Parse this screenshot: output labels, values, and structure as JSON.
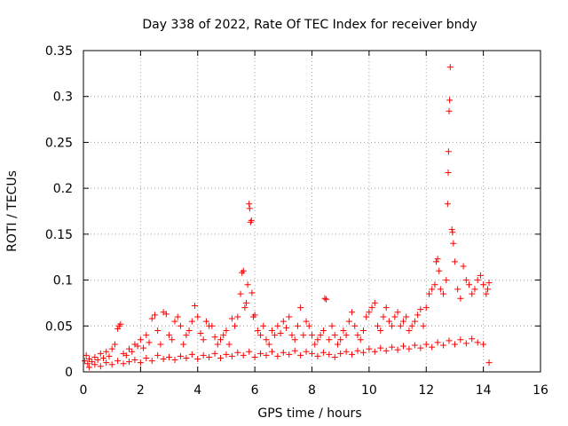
{
  "chart_data": {
    "type": "scatter",
    "title": "Day 338 of 2022, Rate Of TEC Index for receiver bndy",
    "xlabel": "GPS time / hours",
    "ylabel": "ROTI / TECUs",
    "xlim": [
      0,
      16
    ],
    "ylim": [
      0,
      0.35
    ],
    "x_ticks": [
      0,
      2,
      4,
      6,
      8,
      10,
      12,
      14,
      16
    ],
    "x_tick_labels": [
      "0",
      "2",
      "4",
      "6",
      "8",
      "10",
      "12",
      "14",
      "16"
    ],
    "y_ticks": [
      0,
      0.05,
      0.1,
      0.15,
      0.2,
      0.25,
      0.3,
      0.35
    ],
    "y_tick_labels": [
      "0",
      "0.05",
      "0.1",
      "0.15",
      "0.2",
      "0.25",
      "0.3",
      "0.35"
    ],
    "grid": true,
    "marker": "+",
    "marker_color": "#ff0000",
    "series": [
      {
        "name": "ROTI",
        "points": [
          [
            0.05,
            0.012
          ],
          [
            0.1,
            0.018
          ],
          [
            0.15,
            0.009
          ],
          [
            0.2,
            0.014
          ],
          [
            0.3,
            0.011
          ],
          [
            0.4,
            0.016
          ],
          [
            0.5,
            0.013
          ],
          [
            0.6,
            0.02
          ],
          [
            0.7,
            0.015
          ],
          [
            0.8,
            0.022
          ],
          [
            0.9,
            0.017
          ],
          [
            1.0,
            0.025
          ],
          [
            1.1,
            0.03
          ],
          [
            1.2,
            0.047
          ],
          [
            1.25,
            0.05
          ],
          [
            1.3,
            0.052
          ],
          [
            1.4,
            0.02
          ],
          [
            1.5,
            0.018
          ],
          [
            1.6,
            0.025
          ],
          [
            1.7,
            0.022
          ],
          [
            1.8,
            0.03
          ],
          [
            1.9,
            0.028
          ],
          [
            2.0,
            0.035
          ],
          [
            2.1,
            0.026
          ],
          [
            2.2,
            0.04
          ],
          [
            2.3,
            0.032
          ],
          [
            2.4,
            0.058
          ],
          [
            2.5,
            0.062
          ],
          [
            2.6,
            0.045
          ],
          [
            2.7,
            0.03
          ],
          [
            2.8,
            0.065
          ],
          [
            2.9,
            0.063
          ],
          [
            3.0,
            0.04
          ],
          [
            3.1,
            0.035
          ],
          [
            3.2,
            0.055
          ],
          [
            3.3,
            0.06
          ],
          [
            3.4,
            0.05
          ],
          [
            3.5,
            0.03
          ],
          [
            3.6,
            0.04
          ],
          [
            3.7,
            0.045
          ],
          [
            3.8,
            0.055
          ],
          [
            3.9,
            0.072
          ],
          [
            4.0,
            0.06
          ],
          [
            4.1,
            0.042
          ],
          [
            4.2,
            0.035
          ],
          [
            4.3,
            0.055
          ],
          [
            4.4,
            0.05
          ],
          [
            4.5,
            0.05
          ],
          [
            4.6,
            0.038
          ],
          [
            4.7,
            0.03
          ],
          [
            4.8,
            0.035
          ],
          [
            4.9,
            0.04
          ],
          [
            5.0,
            0.045
          ],
          [
            5.1,
            0.03
          ],
          [
            5.2,
            0.058
          ],
          [
            5.3,
            0.05
          ],
          [
            5.4,
            0.06
          ],
          [
            5.5,
            0.085
          ],
          [
            5.55,
            0.108
          ],
          [
            5.6,
            0.11
          ],
          [
            5.65,
            0.07
          ],
          [
            5.7,
            0.075
          ],
          [
            5.75,
            0.095
          ],
          [
            5.8,
            0.183
          ],
          [
            5.82,
            0.178
          ],
          [
            5.85,
            0.163
          ],
          [
            5.88,
            0.165
          ],
          [
            5.9,
            0.086
          ],
          [
            5.95,
            0.06
          ],
          [
            6.0,
            0.062
          ],
          [
            6.1,
            0.045
          ],
          [
            6.2,
            0.04
          ],
          [
            6.3,
            0.05
          ],
          [
            6.4,
            0.035
          ],
          [
            6.5,
            0.03
          ],
          [
            6.6,
            0.045
          ],
          [
            6.7,
            0.04
          ],
          [
            6.8,
            0.05
          ],
          [
            6.9,
            0.042
          ],
          [
            7.0,
            0.055
          ],
          [
            7.1,
            0.048
          ],
          [
            7.2,
            0.06
          ],
          [
            7.3,
            0.04
          ],
          [
            7.4,
            0.035
          ],
          [
            7.5,
            0.05
          ],
          [
            7.6,
            0.07
          ],
          [
            7.7,
            0.04
          ],
          [
            7.8,
            0.055
          ],
          [
            7.9,
            0.05
          ],
          [
            8.0,
            0.04
          ],
          [
            8.1,
            0.03
          ],
          [
            8.2,
            0.035
          ],
          [
            8.3,
            0.04
          ],
          [
            8.4,
            0.045
          ],
          [
            8.45,
            0.08
          ],
          [
            8.5,
            0.079
          ],
          [
            8.6,
            0.035
          ],
          [
            8.7,
            0.05
          ],
          [
            8.8,
            0.04
          ],
          [
            8.9,
            0.03
          ],
          [
            9.0,
            0.035
          ],
          [
            9.1,
            0.045
          ],
          [
            9.2,
            0.04
          ],
          [
            9.3,
            0.055
          ],
          [
            9.4,
            0.065
          ],
          [
            9.5,
            0.05
          ],
          [
            9.6,
            0.04
          ],
          [
            9.7,
            0.035
          ],
          [
            9.8,
            0.045
          ],
          [
            9.9,
            0.06
          ],
          [
            10.0,
            0.065
          ],
          [
            10.1,
            0.07
          ],
          [
            10.2,
            0.075
          ],
          [
            10.3,
            0.05
          ],
          [
            10.4,
            0.045
          ],
          [
            10.5,
            0.06
          ],
          [
            10.6,
            0.07
          ],
          [
            10.7,
            0.055
          ],
          [
            10.8,
            0.05
          ],
          [
            10.9,
            0.06
          ],
          [
            11.0,
            0.065
          ],
          [
            11.1,
            0.05
          ],
          [
            11.2,
            0.055
          ],
          [
            11.3,
            0.06
          ],
          [
            11.4,
            0.045
          ],
          [
            11.5,
            0.05
          ],
          [
            11.6,
            0.055
          ],
          [
            11.7,
            0.062
          ],
          [
            11.8,
            0.068
          ],
          [
            11.9,
            0.05
          ],
          [
            12.0,
            0.07
          ],
          [
            12.1,
            0.085
          ],
          [
            12.2,
            0.09
          ],
          [
            12.3,
            0.095
          ],
          [
            12.35,
            0.12
          ],
          [
            12.4,
            0.123
          ],
          [
            12.45,
            0.11
          ],
          [
            12.5,
            0.09
          ],
          [
            12.6,
            0.085
          ],
          [
            12.7,
            0.1
          ],
          [
            12.75,
            0.183
          ],
          [
            12.77,
            0.217
          ],
          [
            12.78,
            0.24
          ],
          [
            12.8,
            0.284
          ],
          [
            12.82,
            0.296
          ],
          [
            12.84,
            0.332
          ],
          [
            12.9,
            0.155
          ],
          [
            12.92,
            0.152
          ],
          [
            12.95,
            0.14
          ],
          [
            13.0,
            0.12
          ],
          [
            13.1,
            0.09
          ],
          [
            13.2,
            0.08
          ],
          [
            13.3,
            0.115
          ],
          [
            13.4,
            0.1
          ],
          [
            13.5,
            0.095
          ],
          [
            13.6,
            0.085
          ],
          [
            13.7,
            0.09
          ],
          [
            13.8,
            0.1
          ],
          [
            13.9,
            0.105
          ],
          [
            14.0,
            0.095
          ],
          [
            14.1,
            0.085
          ],
          [
            14.15,
            0.09
          ],
          [
            14.2,
            0.097
          ],
          [
            0.2,
            0.005
          ],
          [
            0.4,
            0.008
          ],
          [
            0.6,
            0.006
          ],
          [
            0.8,
            0.01
          ],
          [
            1.0,
            0.008
          ],
          [
            1.2,
            0.012
          ],
          [
            1.4,
            0.009
          ],
          [
            1.6,
            0.011
          ],
          [
            1.8,
            0.013
          ],
          [
            2.0,
            0.01
          ],
          [
            2.2,
            0.015
          ],
          [
            2.4,
            0.012
          ],
          [
            2.6,
            0.018
          ],
          [
            2.8,
            0.014
          ],
          [
            3.0,
            0.016
          ],
          [
            3.2,
            0.013
          ],
          [
            3.4,
            0.017
          ],
          [
            3.6,
            0.015
          ],
          [
            3.8,
            0.019
          ],
          [
            4.0,
            0.014
          ],
          [
            4.2,
            0.018
          ],
          [
            4.4,
            0.016
          ],
          [
            4.6,
            0.02
          ],
          [
            4.8,
            0.015
          ],
          [
            5.0,
            0.019
          ],
          [
            5.2,
            0.017
          ],
          [
            5.4,
            0.021
          ],
          [
            5.6,
            0.018
          ],
          [
            5.8,
            0.022
          ],
          [
            6.0,
            0.016
          ],
          [
            6.2,
            0.02
          ],
          [
            6.4,
            0.018
          ],
          [
            6.6,
            0.022
          ],
          [
            6.8,
            0.017
          ],
          [
            7.0,
            0.021
          ],
          [
            7.2,
            0.019
          ],
          [
            7.4,
            0.023
          ],
          [
            7.6,
            0.018
          ],
          [
            7.8,
            0.022
          ],
          [
            8.0,
            0.02
          ],
          [
            8.2,
            0.017
          ],
          [
            8.4,
            0.021
          ],
          [
            8.6,
            0.019
          ],
          [
            8.8,
            0.016
          ],
          [
            9.0,
            0.02
          ],
          [
            9.2,
            0.022
          ],
          [
            9.4,
            0.019
          ],
          [
            9.6,
            0.023
          ],
          [
            9.8,
            0.021
          ],
          [
            10.0,
            0.025
          ],
          [
            10.2,
            0.022
          ],
          [
            10.4,
            0.026
          ],
          [
            10.6,
            0.023
          ],
          [
            10.8,
            0.027
          ],
          [
            11.0,
            0.024
          ],
          [
            11.2,
            0.028
          ],
          [
            11.4,
            0.025
          ],
          [
            11.6,
            0.029
          ],
          [
            11.8,
            0.026
          ],
          [
            12.0,
            0.03
          ],
          [
            12.2,
            0.027
          ],
          [
            12.4,
            0.032
          ],
          [
            12.6,
            0.029
          ],
          [
            12.8,
            0.034
          ],
          [
            13.0,
            0.03
          ],
          [
            13.2,
            0.035
          ],
          [
            13.4,
            0.031
          ],
          [
            13.6,
            0.036
          ],
          [
            13.8,
            0.032
          ],
          [
            14.0,
            0.03
          ],
          [
            14.2,
            0.01
          ]
        ]
      }
    ]
  }
}
